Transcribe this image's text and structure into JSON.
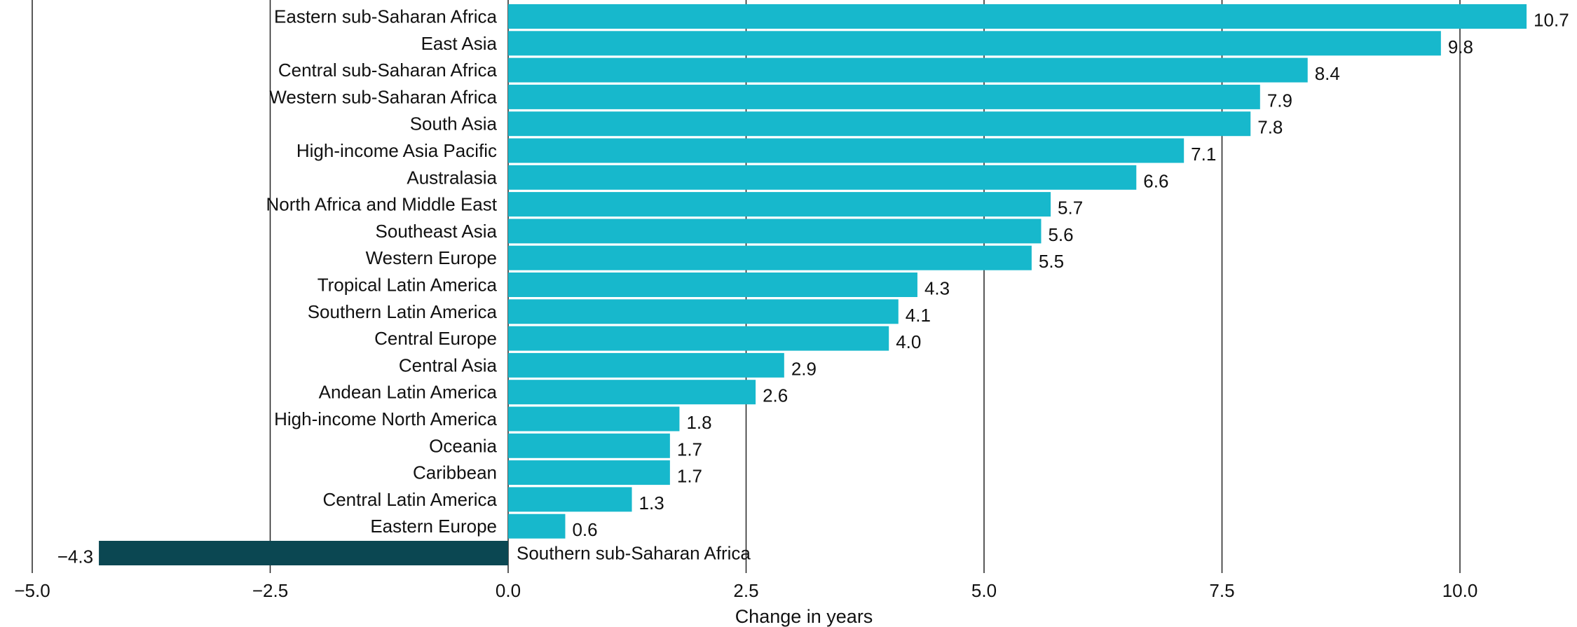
{
  "chart_data": {
    "type": "bar",
    "orientation": "horizontal",
    "categories": [
      "Eastern sub-Saharan Africa",
      "East Asia",
      "Central sub-Saharan Africa",
      "Western sub-Saharan Africa",
      "South Asia",
      "High-income Asia Pacific",
      "Australasia",
      "North Africa and Middle East",
      "Southeast Asia",
      "Western Europe",
      "Tropical Latin America",
      "Southern Latin America",
      "Central Europe",
      "Central Asia",
      "Andean Latin America",
      "High-income North America",
      "Oceania",
      "Caribbean",
      "Central Latin America",
      "Eastern Europe",
      "Southern sub-Saharan Africa"
    ],
    "values": [
      10.7,
      9.8,
      8.4,
      7.9,
      7.8,
      7.1,
      6.6,
      5.7,
      5.6,
      5.5,
      4.3,
      4.1,
      4.0,
      2.9,
      2.6,
      1.8,
      1.7,
      1.7,
      1.3,
      0.6,
      -4.3
    ],
    "value_labels": [
      "10.7",
      "9.8",
      "8.4",
      "7.9",
      "7.8",
      "7.1",
      "6.6",
      "5.7",
      "5.6",
      "5.5",
      "4.3",
      "4.1",
      "4.0",
      "2.9",
      "2.6",
      "1.8",
      "1.7",
      "1.7",
      "1.3",
      "0.6",
      "−4.3"
    ],
    "xlabel": "Change in years",
    "ylabel": "",
    "xlim": [
      -5.0,
      10.0
    ],
    "xticks": [
      -5.0,
      -2.5,
      0.0,
      2.5,
      5.0,
      7.5,
      10.0
    ],
    "xtick_labels": [
      "−5.0",
      "−2.5",
      "0.0",
      "2.5",
      "5.0",
      "7.5",
      "10.0"
    ],
    "grid": true,
    "colors": {
      "positive": "#17b8cc",
      "negative": "#0b4752",
      "text": "#111111",
      "grid": "#222222"
    }
  }
}
